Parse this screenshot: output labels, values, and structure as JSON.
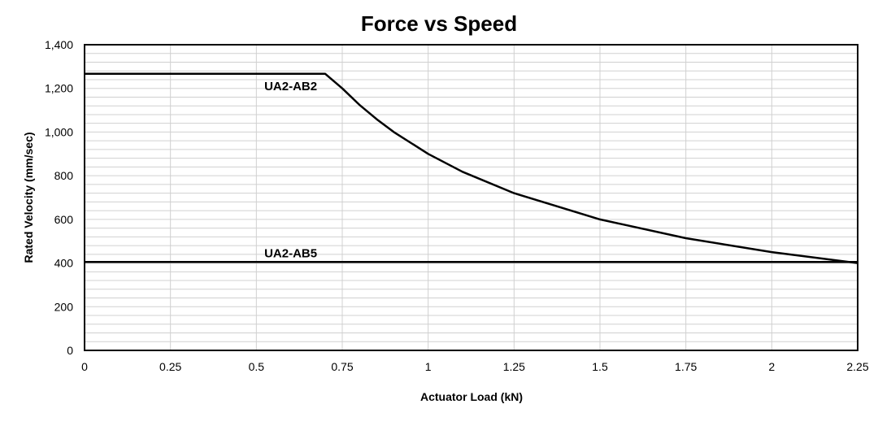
{
  "chart_data": {
    "type": "line",
    "title": "Force vs Speed",
    "xlabel": "Actuator Load (kN)",
    "ylabel": "Rated Velocity (mm/sec)",
    "xlim": [
      0,
      2.25
    ],
    "ylim": [
      0,
      1400
    ],
    "x_ticks": [
      "0",
      "0.25",
      "0.5",
      "0.75",
      "1",
      "1.25",
      "1.5",
      "1.75",
      "2",
      "2.25"
    ],
    "y_ticks": [
      "0",
      "200",
      "400",
      "600",
      "800",
      "1,000",
      "1,200",
      "1,400"
    ],
    "grid": true,
    "series": [
      {
        "name": "UA2-AB2",
        "x": [
          0,
          0.7,
          0.75,
          0.8,
          0.85,
          0.9,
          1.0,
          1.1,
          1.25,
          1.5,
          1.75,
          2.0,
          2.25
        ],
        "y": [
          1267,
          1267,
          1200,
          1125,
          1059,
          1000,
          900,
          818,
          720,
          600,
          514,
          450,
          400
        ]
      },
      {
        "name": "UA2-AB5",
        "x": [
          0,
          2.25
        ],
        "y": [
          405,
          405
        ]
      }
    ]
  }
}
